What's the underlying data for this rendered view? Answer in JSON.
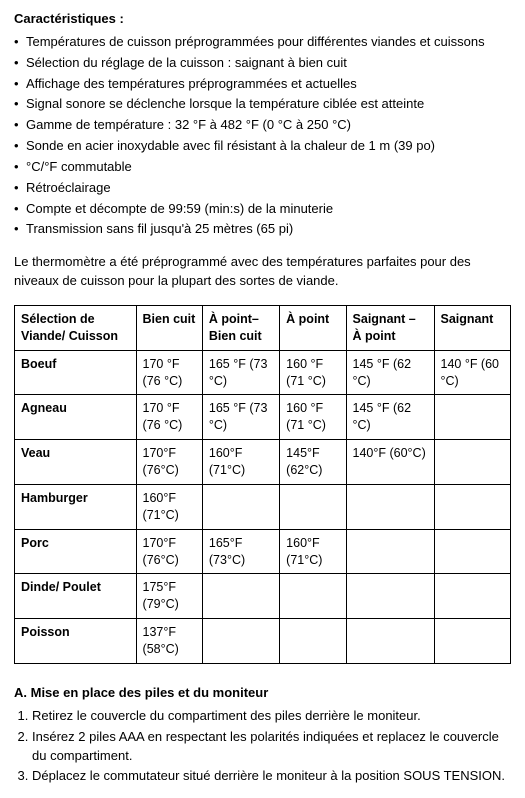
{
  "heading": "Caractéristiques :",
  "features": [
    "Températures de cuisson préprogrammées pour différentes viandes et cuissons",
    "Sélection du réglage de la cuisson : saignant à bien cuit",
    "Affichage des températures préprogrammées et actuelles",
    "Signal sonore se déclenche lorsque la température ciblée est atteinte",
    "Gamme de température : 32 °F à 482 °F (0 °C à 250 °C)",
    "Sonde en acier inoxydable avec fil résistant à la chaleur de 1 m (39 po)",
    "°C/°F commutable",
    "Rétroéclairage",
    "Compte et décompte de 99:59 (min:s) de la minuterie",
    "Transmission sans fil jusqu'à 25 mètres (65 pi)"
  ],
  "intro": "Le thermomètre a été préprogrammé avec des températures parfaites pour des niveaux de cuisson pour la plupart des sortes de viande.",
  "table": {
    "columns": [
      "Sélection de Viande/ Cuisson",
      "Bien cuit",
      "À point– Bien cuit",
      "À point",
      "Saignant – À point",
      "Saignant"
    ],
    "rows": [
      {
        "name": "Boeuf",
        "c1": "170 °F (76 °C)",
        "c2": "165 °F (73 °C)",
        "c3": "160 °F (71 °C)",
        "c4": "145 °F (62 °C)",
        "c5": "140 °F (60 °C)"
      },
      {
        "name": "Agneau",
        "c1": "170 °F (76 °C)",
        "c2": "165 °F (73 °C)",
        "c3": "160 °F (71 °C)",
        "c4": "145 °F (62 °C)",
        "c5": ""
      },
      {
        "name": "Veau",
        "c1": "170°F (76°C)",
        "c2": "160°F (71°C)",
        "c3": "145°F (62°C)",
        "c4": "140°F (60°C)",
        "c5": ""
      },
      {
        "name": "Hamburger",
        "c1": "160°F (71°C)",
        "c2": "",
        "c3": "",
        "c4": "",
        "c5": ""
      },
      {
        "name": "Porc",
        "c1": "170°F (76°C)",
        "c2": "165°F (73°C)",
        "c3": "160°F (71°C)",
        "c4": "",
        "c5": ""
      },
      {
        "name": "Dinde/ Poulet",
        "c1": "175°F (79°C)",
        "c2": "",
        "c3": "",
        "c4": "",
        "c5": ""
      },
      {
        "name": "Poisson",
        "c1": "137°F (58°C)",
        "c2": "",
        "c3": "",
        "c4": "",
        "c5": ""
      }
    ]
  },
  "setup": {
    "heading": "A. Mise en place des piles et du moniteur",
    "steps": [
      "Retirez le couvercle du compartiment des piles derrière le moniteur.",
      "Insérez 2 piles AAA en respectant les polarités indiquées et replacez le couvercle du compartiment.",
      "Déplacez le commutateur situé derrière le moniteur à la position SOUS TENSION."
    ]
  }
}
